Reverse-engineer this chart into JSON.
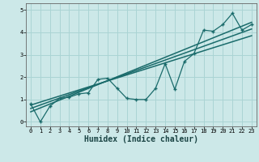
{
  "title": "",
  "xlabel": "Humidex (Indice chaleur)",
  "ylabel": "",
  "bg_color": "#cce8e8",
  "line_color": "#1a6b6b",
  "grid_color": "#aad4d4",
  "xlim": [
    -0.5,
    23.5
  ],
  "ylim": [
    -0.2,
    5.3
  ],
  "xticks": [
    0,
    1,
    2,
    3,
    4,
    5,
    6,
    7,
    8,
    9,
    10,
    11,
    12,
    13,
    14,
    15,
    16,
    17,
    18,
    19,
    20,
    21,
    22,
    23
  ],
  "yticks": [
    0,
    1,
    2,
    3,
    4,
    5
  ],
  "data_x": [
    0,
    1,
    2,
    3,
    4,
    5,
    6,
    7,
    8,
    9,
    10,
    11,
    12,
    13,
    14,
    15,
    16,
    17,
    18,
    19,
    20,
    21,
    22,
    23
  ],
  "data_y": [
    0.8,
    0.0,
    0.7,
    1.05,
    1.1,
    1.25,
    1.3,
    1.9,
    1.95,
    1.5,
    1.05,
    1.0,
    1.0,
    1.5,
    2.6,
    1.45,
    2.7,
    3.05,
    4.1,
    4.05,
    4.35,
    4.85,
    4.1,
    4.35
  ],
  "trend1_x": [
    0,
    23
  ],
  "trend1_y": [
    0.6,
    4.15
  ],
  "trend2_x": [
    0,
    23
  ],
  "trend2_y": [
    0.45,
    4.45
  ],
  "trend3_x": [
    0,
    23
  ],
  "trend3_y": [
    0.75,
    3.85
  ],
  "xlabel_fontsize": 7,
  "tick_fontsize": 5,
  "xlabel_color": "#1a4444"
}
